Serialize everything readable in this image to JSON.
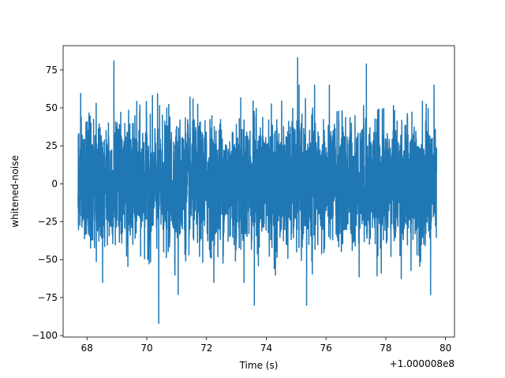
{
  "chart_data": {
    "type": "line",
    "title": "",
    "xlabel": "Time (s)",
    "ylabel": "whitened-noise",
    "x_offset_label": "+1.000008e8",
    "xlim": [
      67.2,
      80.3
    ],
    "ylim": [
      -101,
      91
    ],
    "x_ticks": [
      68,
      70,
      72,
      74,
      76,
      78,
      80
    ],
    "x_tick_labels": [
      "68",
      "70",
      "72",
      "74",
      "76",
      "78",
      "80"
    ],
    "y_ticks": [
      -100,
      -75,
      -50,
      -25,
      0,
      25,
      50,
      75
    ],
    "y_tick_labels": [
      "−100",
      "−75",
      "−50",
      "−25",
      "0",
      "25",
      "50",
      "75"
    ],
    "grid": false,
    "legend": "none",
    "series": [
      {
        "color": "#1f77b4",
        "x_range": [
          67.7,
          79.7
        ],
        "amplitude_envelope": [
          -50,
          50
        ],
        "extremes": [
          {
            "x": 68.9,
            "y": 81
          },
          {
            "x": 75.05,
            "y": 83
          },
          {
            "x": 77.35,
            "y": 79
          },
          {
            "x": 70.4,
            "y": -92
          },
          {
            "x": 75.35,
            "y": -80
          },
          {
            "x": 73.6,
            "y": -80
          },
          {
            "x": 71.05,
            "y": -73
          },
          {
            "x": 79.5,
            "y": -73
          }
        ]
      }
    ]
  },
  "colors": {
    "line": "#1f77b4",
    "axes": "#000000",
    "background": "#ffffff"
  }
}
